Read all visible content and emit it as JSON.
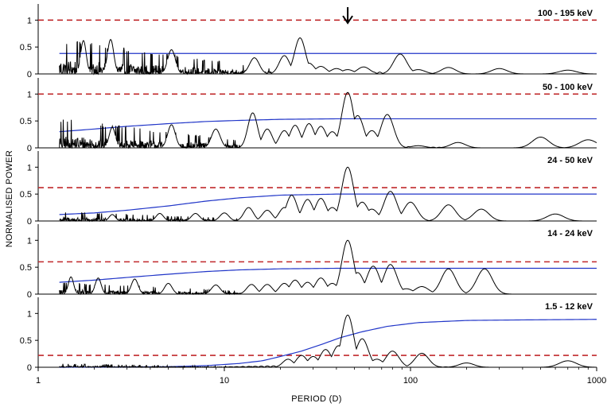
{
  "chart_data": {
    "type": "line",
    "title": "",
    "xlabel": "PERIOD (D)",
    "ylabel": "NORMALISED POWER",
    "xscale": "log",
    "xlim": [
      1,
      1000
    ],
    "x_ticks": [
      1,
      10,
      100,
      1000
    ],
    "x_tick_labels": [
      "1",
      "10",
      "100",
      "1000"
    ],
    "ylim": [
      0,
      1.3
    ],
    "y_ticks": [
      0,
      0.5,
      1
    ],
    "y_tick_labels": [
      "0",
      "0.5",
      "1"
    ],
    "grid": false,
    "arrow_marker": {
      "period": 46,
      "description": "downward arrow marking the ~46 d period"
    },
    "panels": [
      {
        "band": "100 - 195 keV",
        "significance_level": 1.0,
        "significance_curve": [
          [
            1.3,
            0.38
          ],
          [
            1000,
            0.38
          ]
        ],
        "peaks": [
          [
            1.75,
            0.62
          ],
          [
            2.45,
            0.64
          ],
          [
            5.2,
            0.45
          ],
          [
            14.5,
            0.3
          ],
          [
            21,
            0.34
          ],
          [
            25.5,
            0.67
          ],
          [
            28.5,
            0.2
          ],
          [
            33,
            0.14
          ],
          [
            40,
            0.1
          ],
          [
            46,
            0.08
          ],
          [
            56,
            0.13
          ],
          [
            88,
            0.37
          ],
          [
            110,
            0.08
          ],
          [
            160,
            0.12
          ],
          [
            300,
            0.1
          ],
          [
            700,
            0.07
          ]
        ],
        "noise_floor": 0.3
      },
      {
        "band": "50 - 100 keV",
        "significance_level": 1.0,
        "significance_curve": [
          [
            1.3,
            0.3
          ],
          [
            2,
            0.35
          ],
          [
            3,
            0.4
          ],
          [
            5,
            0.45
          ],
          [
            8,
            0.49
          ],
          [
            12,
            0.51
          ],
          [
            20,
            0.53
          ],
          [
            40,
            0.54
          ],
          [
            1000,
            0.54
          ]
        ],
        "peaks": [
          [
            2.5,
            0.38
          ],
          [
            5.2,
            0.43
          ],
          [
            9,
            0.35
          ],
          [
            14.2,
            0.65
          ],
          [
            17,
            0.35
          ],
          [
            21,
            0.32
          ],
          [
            24,
            0.42
          ],
          [
            28.5,
            0.45
          ],
          [
            33,
            0.4
          ],
          [
            38,
            0.3
          ],
          [
            46,
            1.03
          ],
          [
            52,
            0.6
          ],
          [
            62,
            0.32
          ],
          [
            75,
            0.62
          ],
          [
            110,
            0.04
          ],
          [
            180,
            0.1
          ],
          [
            500,
            0.2
          ],
          [
            900,
            0.15
          ]
        ],
        "noise_floor": 0.25
      },
      {
        "band": "24 - 50 keV",
        "significance_level": 0.62,
        "significance_curve": [
          [
            1.3,
            0.12
          ],
          [
            2,
            0.15
          ],
          [
            3,
            0.2
          ],
          [
            5,
            0.28
          ],
          [
            8,
            0.37
          ],
          [
            12,
            0.43
          ],
          [
            20,
            0.48
          ],
          [
            40,
            0.5
          ],
          [
            1000,
            0.5
          ]
        ],
        "peaks": [
          [
            2.5,
            0.12
          ],
          [
            4.5,
            0.14
          ],
          [
            7,
            0.14
          ],
          [
            10,
            0.15
          ],
          [
            13.5,
            0.25
          ],
          [
            17,
            0.2
          ],
          [
            21,
            0.25
          ],
          [
            23,
            0.48
          ],
          [
            28,
            0.4
          ],
          [
            33,
            0.42
          ],
          [
            38,
            0.25
          ],
          [
            46,
            1.0
          ],
          [
            55,
            0.35
          ],
          [
            62,
            0.22
          ],
          [
            78,
            0.55
          ],
          [
            100,
            0.35
          ],
          [
            160,
            0.3
          ],
          [
            240,
            0.22
          ],
          [
            600,
            0.13
          ]
        ],
        "noise_floor": 0.08
      },
      {
        "band": "14 - 24 keV",
        "significance_level": 0.6,
        "significance_curve": [
          [
            1.3,
            0.22
          ],
          [
            2,
            0.26
          ],
          [
            3,
            0.31
          ],
          [
            5,
            0.37
          ],
          [
            8,
            0.42
          ],
          [
            12,
            0.45
          ],
          [
            20,
            0.47
          ],
          [
            40,
            0.48
          ],
          [
            1000,
            0.48
          ]
        ],
        "peaks": [
          [
            1.5,
            0.32
          ],
          [
            2.1,
            0.3
          ],
          [
            3.3,
            0.28
          ],
          [
            5,
            0.2
          ],
          [
            9,
            0.17
          ],
          [
            14,
            0.18
          ],
          [
            17,
            0.18
          ],
          [
            21,
            0.2
          ],
          [
            24,
            0.26
          ],
          [
            28,
            0.22
          ],
          [
            33,
            0.3
          ],
          [
            38,
            0.2
          ],
          [
            46,
            1.0
          ],
          [
            52,
            0.4
          ],
          [
            63,
            0.52
          ],
          [
            78,
            0.55
          ],
          [
            95,
            0.1
          ],
          [
            115,
            0.14
          ],
          [
            160,
            0.47
          ],
          [
            250,
            0.47
          ]
        ],
        "noise_floor": 0.1
      },
      {
        "band": "1.5 - 12 keV",
        "significance_level": 0.22,
        "significance_curve": [
          [
            1.3,
            0.0
          ],
          [
            5,
            0.01
          ],
          [
            8,
            0.03
          ],
          [
            12,
            0.07
          ],
          [
            16,
            0.12
          ],
          [
            20,
            0.2
          ],
          [
            26,
            0.3
          ],
          [
            33,
            0.42
          ],
          [
            42,
            0.55
          ],
          [
            55,
            0.66
          ],
          [
            75,
            0.76
          ],
          [
            110,
            0.83
          ],
          [
            200,
            0.87
          ],
          [
            400,
            0.88
          ],
          [
            1000,
            0.89
          ]
        ],
        "peaks": [
          [
            22,
            0.15
          ],
          [
            26,
            0.22
          ],
          [
            30,
            0.2
          ],
          [
            35,
            0.33
          ],
          [
            41,
            0.4
          ],
          [
            46,
            0.97
          ],
          [
            49,
            0.3
          ],
          [
            55,
            0.53
          ],
          [
            66,
            0.15
          ],
          [
            80,
            0.3
          ],
          [
            115,
            0.26
          ],
          [
            200,
            0.08
          ],
          [
            700,
            0.12
          ]
        ],
        "noise_floor": 0.03
      }
    ]
  }
}
